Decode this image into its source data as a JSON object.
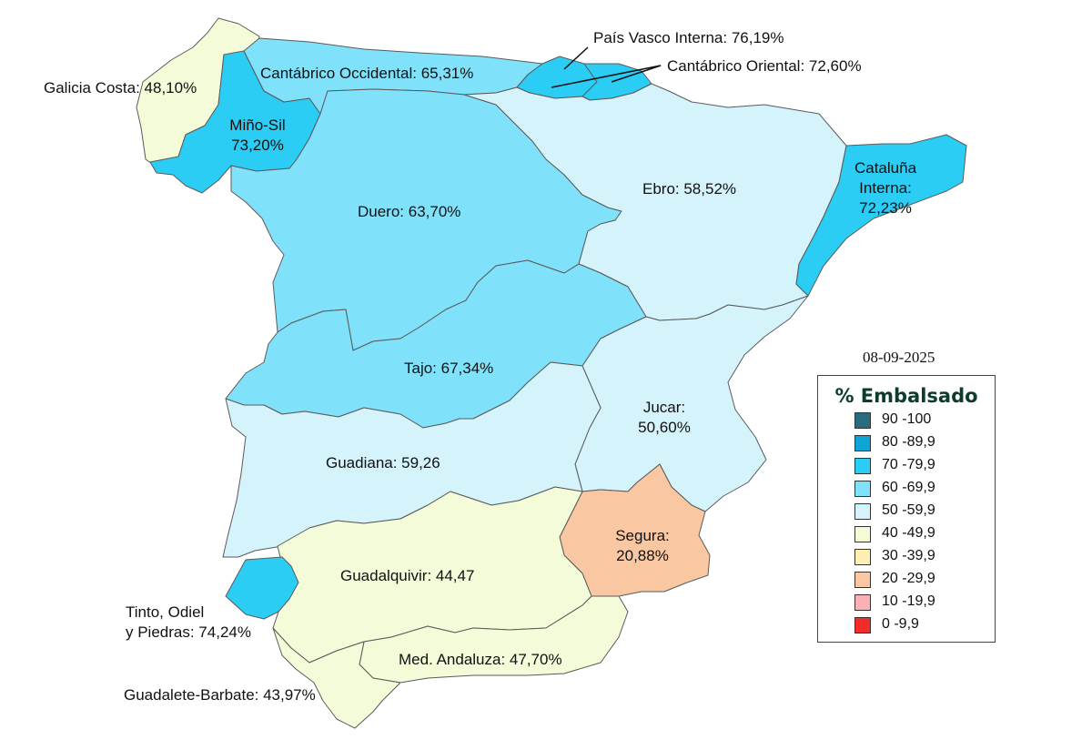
{
  "date": "08-09-2025",
  "legend": {
    "title": "% Embalsado",
    "items": [
      {
        "label": "90 -100",
        "color": "#2a6b80"
      },
      {
        "label": "80 -89,9",
        "color": "#0ea5d6"
      },
      {
        "label": "70 -79,9",
        "color": "#2ccdf5"
      },
      {
        "label": "60 -69,9",
        "color": "#80e1fa"
      },
      {
        "label": "50 -59,9",
        "color": "#d4f3fb"
      },
      {
        "label": "40 -49,9",
        "color": "#f3fbd9"
      },
      {
        "label": "30 -39,9",
        "color": "#fdeeb1"
      },
      {
        "label": "20 -29,9",
        "color": "#f9c7a2"
      },
      {
        "label": "10 -19,9",
        "color": "#fbb1b4"
      },
      {
        "label": "0 -9,9",
        "color": "#f22b2b"
      }
    ]
  },
  "regions": {
    "galicia_costa": {
      "label": "Galicia Costa: 48,10%",
      "color": "#f3fbd9"
    },
    "mino_sil": {
      "line1": "Miño-Sil",
      "line2": "73,20%",
      "color": "#2ccdf5"
    },
    "cantabrico_occidental": {
      "label": "Cantábrico Occidental: 65,31%",
      "color": "#80e1fa"
    },
    "pais_vasco": {
      "label": "País Vasco Interna: 76,19%",
      "color": "#2ccdf5"
    },
    "cantabrico_oriental": {
      "label": "Cantábrico Oriental: 72,60%",
      "color": "#2ccdf5"
    },
    "duero": {
      "label": "Duero: 63,70%",
      "color": "#80e1fa"
    },
    "ebro": {
      "label": "Ebro: 58,52%",
      "color": "#d4f3fb"
    },
    "cataluna": {
      "line1": "Cataluña",
      "line2": "Interna:",
      "line3": "72,23%",
      "color": "#2ccdf5"
    },
    "tajo": {
      "label": "Tajo: 67,34%",
      "color": "#80e1fa"
    },
    "jucar": {
      "line1": "Jucar:",
      "line2": "50,60%",
      "color": "#d4f3fb"
    },
    "guadiana": {
      "label": "Guadiana: 59,26",
      "color": "#d4f3fb"
    },
    "segura": {
      "line1": "Segura:",
      "line2": "20,88%",
      "color": "#f9c7a2"
    },
    "guadalquivir": {
      "label": "Guadalquivir: 44,47",
      "color": "#f3fbd9"
    },
    "tinto": {
      "line1": "Tinto, Odiel",
      "line2": "y Piedras: 74,24%",
      "color": "#2ccdf5"
    },
    "med_andaluza": {
      "label": "Med. Andaluza: 47,70%",
      "color": "#f3fbd9"
    },
    "guadalete": {
      "label": "Guadalete-Barbate: 43,97%",
      "color": "#f3fbd9"
    }
  }
}
